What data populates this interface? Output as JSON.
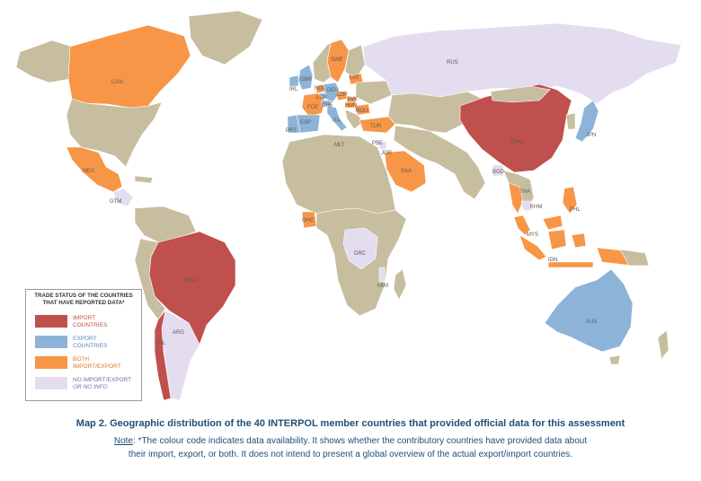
{
  "colors": {
    "import": "#c0504d",
    "export": "#8db3d9",
    "both": "#f79646",
    "none": "#e4dcef",
    "nodata": "#c7bea0",
    "ocean": "#ffffff"
  },
  "legend": {
    "title_line1": "TRADE STATUS OF THE COUNTRIES",
    "title_line2": "THAT HAVE REPORTED DATA*",
    "items": [
      {
        "line1": "IMPORT",
        "line2": "COUNTRIES",
        "color": "#c0504d",
        "text_color": "#c0504d"
      },
      {
        "line1": "EXPORT",
        "line2": "COUNTRIES",
        "color": "#8db3d9",
        "text_color": "#5b87b8"
      },
      {
        "line1": "BOTH",
        "line2": "IMPORT/EXPORT",
        "color": "#f79646",
        "text_color": "#e07b20"
      },
      {
        "line1": "NO IMPORT/EXPORT",
        "line2": "OR NO INFO",
        "color": "#e4dcef",
        "text_color": "#7e6aa6"
      }
    ]
  },
  "countries": {
    "CAN": "CAN",
    "MEX": "MEX",
    "GTM": "GTM",
    "BRA": "BRA",
    "ARG": "ARG",
    "CHL": "CHL",
    "SWE": "SWE",
    "LAT": "LAT",
    "GBR": "GBR",
    "IRL": "IRL",
    "NDL": "NDL",
    "DEU": "DEU",
    "CZP": "CZP",
    "SVK": "SVK",
    "LUX": "LUX",
    "HUN": "HUN",
    "FCE": "FCE",
    "CHE": "CHE",
    "ROU": "ROU",
    "ESP": "ESP",
    "PRT": "PRT",
    "ITA": "ITA",
    "MLT": "MLT",
    "TUR": "TUR",
    "PSE": "PSE",
    "JOR": "JOR",
    "SAA": "SAA",
    "RUS": "RUS",
    "CHN": "CHN",
    "JPN": "JPN",
    "BGD": "BGD",
    "THA": "THA",
    "KHM": "KHM",
    "PHL": "PHL",
    "MYS": "MYS",
    "IDN": "IDN",
    "AUS": "AUS",
    "GHC": "GHC",
    "DRC": "DRC",
    "MWI": "MWI"
  },
  "caption": {
    "title": "Map 2. Geographic distribution of the 40 INTERPOL member countries that provided official data for this assessment",
    "note_label": "Note",
    "note_line1": ": *The colour code indicates data availability. It shows whether the contributory countries have provided data about",
    "note_line2": "their import, export, or both. It does not intend to present a global overview of the actual export/import countries."
  }
}
